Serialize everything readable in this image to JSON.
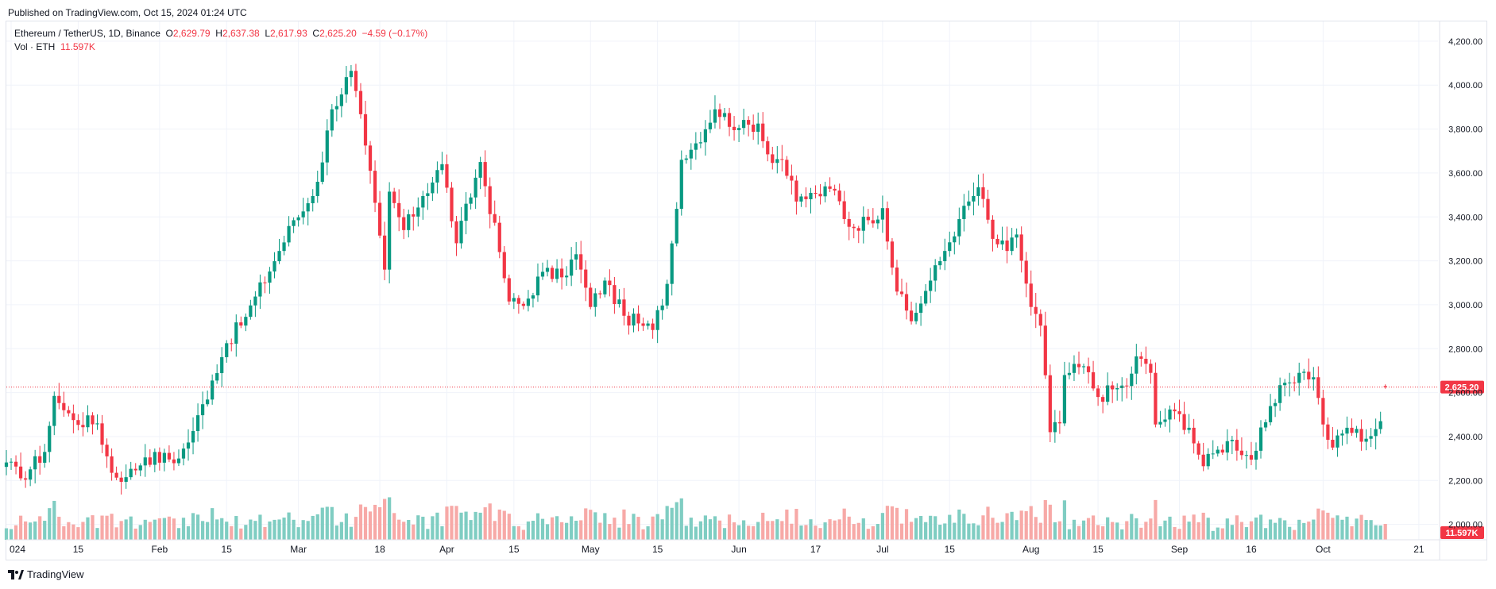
{
  "header": {
    "published": "Published on TradingView.com, Oct 15, 2024 01:24 UTC"
  },
  "legend": {
    "symbol": "Ethereum / TetherUS, 1D, Binance",
    "open_label": "O",
    "open": "2,629.79",
    "high_label": "H",
    "high": "2,637.38",
    "low_label": "L",
    "low": "2,617.93",
    "close_label": "C",
    "close": "2,625.20",
    "change": "−4.59 (−0.17%)",
    "vol_label": "Vol · ETH",
    "vol": "11.597K"
  },
  "footer": {
    "brand": "TradingView",
    "logo_icon": "tradingview-logo-icon"
  },
  "colors": {
    "up": "#089981",
    "down": "#f23645",
    "up_volume": "#7fcdc2",
    "down_volume": "#f7a9a7",
    "grid": "#f0f3fa",
    "price_line": "#f23645"
  },
  "chart_data": {
    "type": "candlestick",
    "symbol": "ETHUSDT",
    "interval": "1D",
    "ylim": [
      1930,
      4290
    ],
    "y_ticks": [
      "2,000.00",
      "2,200.00",
      "2,400.00",
      "2,600.00",
      "2,800.00",
      "3,000.00",
      "3,200.00",
      "3,400.00",
      "3,600.00",
      "3,800.00",
      "4,000.00",
      "4,200.00"
    ],
    "x_ticks": [
      {
        "label": "024",
        "date": "2024-01-01"
      },
      {
        "label": "15",
        "date": "2024-01-15"
      },
      {
        "label": "Feb",
        "date": "2024-02-01"
      },
      {
        "label": "15",
        "date": "2024-02-15"
      },
      {
        "label": "Mar",
        "date": "2024-03-01"
      },
      {
        "label": "18",
        "date": "2024-03-18"
      },
      {
        "label": "Apr",
        "date": "2024-04-01"
      },
      {
        "label": "15",
        "date": "2024-04-15"
      },
      {
        "label": "May",
        "date": "2024-05-01"
      },
      {
        "label": "15",
        "date": "2024-05-15"
      },
      {
        "label": "Jun",
        "date": "2024-06-01"
      },
      {
        "label": "17",
        "date": "2024-06-17"
      },
      {
        "label": "Jul",
        "date": "2024-07-01"
      },
      {
        "label": "15",
        "date": "2024-07-15"
      },
      {
        "label": "Aug",
        "date": "2024-08-01"
      },
      {
        "label": "15",
        "date": "2024-08-15"
      },
      {
        "label": "Sep",
        "date": "2024-09-01"
      },
      {
        "label": "16",
        "date": "2024-09-16"
      },
      {
        "label": "Oct",
        "date": "2024-10-01"
      },
      {
        "label": "21",
        "date": "2024-10-21"
      }
    ],
    "last_price_label": "2,625.20",
    "last_price": 2625.2,
    "volume_label": "11.597K",
    "keypoints": [
      {
        "date": "2023-12-31",
        "close": 2282
      },
      {
        "date": "2024-01-03",
        "close": 2210
      },
      {
        "date": "2024-01-08",
        "close": 2330
      },
      {
        "date": "2024-01-10",
        "close": 2585
      },
      {
        "date": "2024-01-12",
        "close": 2520
      },
      {
        "date": "2024-01-14",
        "close": 2475
      },
      {
        "date": "2024-01-19",
        "close": 2460
      },
      {
        "date": "2024-01-22",
        "close": 2235
      },
      {
        "date": "2024-01-25",
        "close": 2215
      },
      {
        "date": "2024-01-29",
        "close": 2305
      },
      {
        "date": "2024-02-05",
        "close": 2300
      },
      {
        "date": "2024-02-08",
        "close": 2425
      },
      {
        "date": "2024-02-12",
        "close": 2655
      },
      {
        "date": "2024-02-15",
        "close": 2825
      },
      {
        "date": "2024-02-19",
        "close": 2945
      },
      {
        "date": "2024-02-26",
        "close": 3245
      },
      {
        "date": "2024-02-29",
        "close": 3385
      },
      {
        "date": "2024-03-02",
        "close": 3425
      },
      {
        "date": "2024-03-05",
        "close": 3560
      },
      {
        "date": "2024-03-08",
        "close": 3890
      },
      {
        "date": "2024-03-12",
        "close": 4065
      },
      {
        "date": "2024-03-15",
        "close": 3725
      },
      {
        "date": "2024-03-19",
        "close": 3160
      },
      {
        "date": "2024-03-20",
        "close": 3515
      },
      {
        "date": "2024-03-23",
        "close": 3340
      },
      {
        "date": "2024-03-27",
        "close": 3495
      },
      {
        "date": "2024-03-31",
        "close": 3640
      },
      {
        "date": "2024-04-03",
        "close": 3280
      },
      {
        "date": "2024-04-08",
        "close": 3650
      },
      {
        "date": "2024-04-12",
        "close": 3240
      },
      {
        "date": "2024-04-14",
        "close": 3015
      },
      {
        "date": "2024-04-17",
        "close": 2995
      },
      {
        "date": "2024-04-21",
        "close": 3150
      },
      {
        "date": "2024-04-25",
        "close": 3125
      },
      {
        "date": "2024-04-28",
        "close": 3230
      },
      {
        "date": "2024-05-01",
        "close": 2990
      },
      {
        "date": "2024-05-04",
        "close": 3110
      },
      {
        "date": "2024-05-08",
        "close": 2950
      },
      {
        "date": "2024-05-11",
        "close": 2915
      },
      {
        "date": "2024-05-14",
        "close": 2885
      },
      {
        "date": "2024-05-17",
        "close": 3095
      },
      {
        "date": "2024-05-20",
        "close": 3660
      },
      {
        "date": "2024-05-23",
        "close": 3735
      },
      {
        "date": "2024-05-27",
        "close": 3890
      },
      {
        "date": "2024-06-01",
        "close": 3805
      },
      {
        "date": "2024-06-05",
        "close": 3825
      },
      {
        "date": "2024-06-07",
        "close": 3685
      },
      {
        "date": "2024-06-10",
        "close": 3660
      },
      {
        "date": "2024-06-13",
        "close": 3470
      },
      {
        "date": "2024-06-17",
        "close": 3505
      },
      {
        "date": "2024-06-21",
        "close": 3520
      },
      {
        "date": "2024-06-24",
        "close": 3355
      },
      {
        "date": "2024-06-28",
        "close": 3385
      },
      {
        "date": "2024-07-01",
        "close": 3440
      },
      {
        "date": "2024-07-04",
        "close": 3060
      },
      {
        "date": "2024-07-07",
        "close": 2925
      },
      {
        "date": "2024-07-11",
        "close": 3110
      },
      {
        "date": "2024-07-14",
        "close": 3245
      },
      {
        "date": "2024-07-17",
        "close": 3390
      },
      {
        "date": "2024-07-21",
        "close": 3535
      },
      {
        "date": "2024-07-24",
        "close": 3300
      },
      {
        "date": "2024-07-27",
        "close": 3245
      },
      {
        "date": "2024-07-29",
        "close": 3320
      },
      {
        "date": "2024-08-01",
        "close": 2990
      },
      {
        "date": "2024-08-03",
        "close": 2905
      },
      {
        "date": "2024-08-05",
        "close": 2420
      },
      {
        "date": "2024-08-07",
        "close": 2460
      },
      {
        "date": "2024-08-08",
        "close": 2680
      },
      {
        "date": "2024-08-12",
        "close": 2720
      },
      {
        "date": "2024-08-15",
        "close": 2580
      },
      {
        "date": "2024-08-18",
        "close": 2615
      },
      {
        "date": "2024-08-21",
        "close": 2630
      },
      {
        "date": "2024-08-23",
        "close": 2765
      },
      {
        "date": "2024-08-26",
        "close": 2690
      },
      {
        "date": "2024-08-27",
        "close": 2455
      },
      {
        "date": "2024-08-31",
        "close": 2515
      },
      {
        "date": "2024-09-03",
        "close": 2440
      },
      {
        "date": "2024-09-06",
        "close": 2265
      },
      {
        "date": "2024-09-09",
        "close": 2340
      },
      {
        "date": "2024-09-12",
        "close": 2385
      },
      {
        "date": "2024-09-16",
        "close": 2295
      },
      {
        "date": "2024-09-19",
        "close": 2465
      },
      {
        "date": "2024-09-23",
        "close": 2645
      },
      {
        "date": "2024-09-27",
        "close": 2695
      },
      {
        "date": "2024-09-29",
        "close": 2670
      },
      {
        "date": "2024-10-01",
        "close": 2455
      },
      {
        "date": "2024-10-03",
        "close": 2350
      },
      {
        "date": "2024-10-06",
        "close": 2440
      },
      {
        "date": "2024-10-10",
        "close": 2390
      },
      {
        "date": "2024-10-13",
        "close": 2470
      },
      {
        "date": "2024-10-14",
        "close": 2625.2
      }
    ]
  }
}
